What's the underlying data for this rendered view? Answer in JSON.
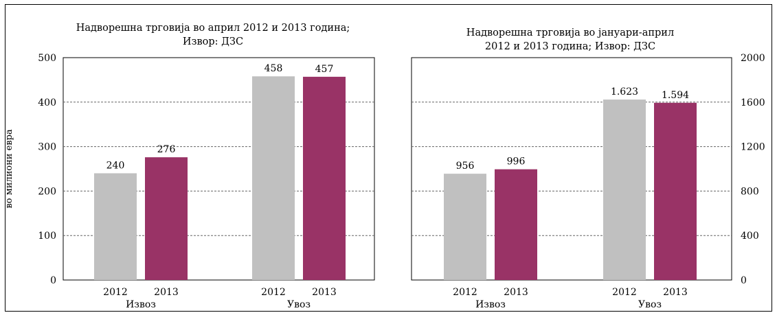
{
  "chart_data": [
    {
      "type": "bar",
      "title_lines": [
        "Надворешна трговија во април 2012 и 2013 година;",
        "Извор: ДЗС"
      ],
      "ylabel": "во милиони евра",
      "ylim": [
        0,
        500
      ],
      "yticks": [
        "0",
        "100",
        "200",
        "300",
        "400",
        "500"
      ],
      "ytick_values": [
        0,
        100,
        200,
        300,
        400,
        500
      ],
      "groups": [
        "Извоз",
        "Увоз"
      ],
      "series": [
        {
          "name": "2012",
          "color": "#c0c0c0",
          "values": [
            240,
            458
          ],
          "labels": [
            "240",
            "458"
          ]
        },
        {
          "name": "2013",
          "color": "#993366",
          "values": [
            276,
            457
          ],
          "labels": [
            "276",
            "457"
          ]
        }
      ],
      "grid": "horizontal dashed",
      "axis_side": "left"
    },
    {
      "type": "bar",
      "title_lines": [
        "Надворешна трговија во јануари-април",
        "2012 и 2013 година; Извор: ДЗС"
      ],
      "ylabel": "",
      "ylim": [
        0,
        2000
      ],
      "yticks": [
        "0",
        "400",
        "800",
        "1200",
        "1600",
        "2000"
      ],
      "ytick_values": [
        0,
        400,
        800,
        1200,
        1600,
        2000
      ],
      "groups": [
        "Извоз",
        "Увоз"
      ],
      "series": [
        {
          "name": "2012",
          "color": "#c0c0c0",
          "values": [
            956,
            1623
          ],
          "labels": [
            "956",
            "1.623"
          ]
        },
        {
          "name": "2013",
          "color": "#993366",
          "values": [
            996,
            1594
          ],
          "labels": [
            "996",
            "1.594"
          ]
        }
      ],
      "grid": "horizontal dashed",
      "axis_side": "right"
    }
  ]
}
